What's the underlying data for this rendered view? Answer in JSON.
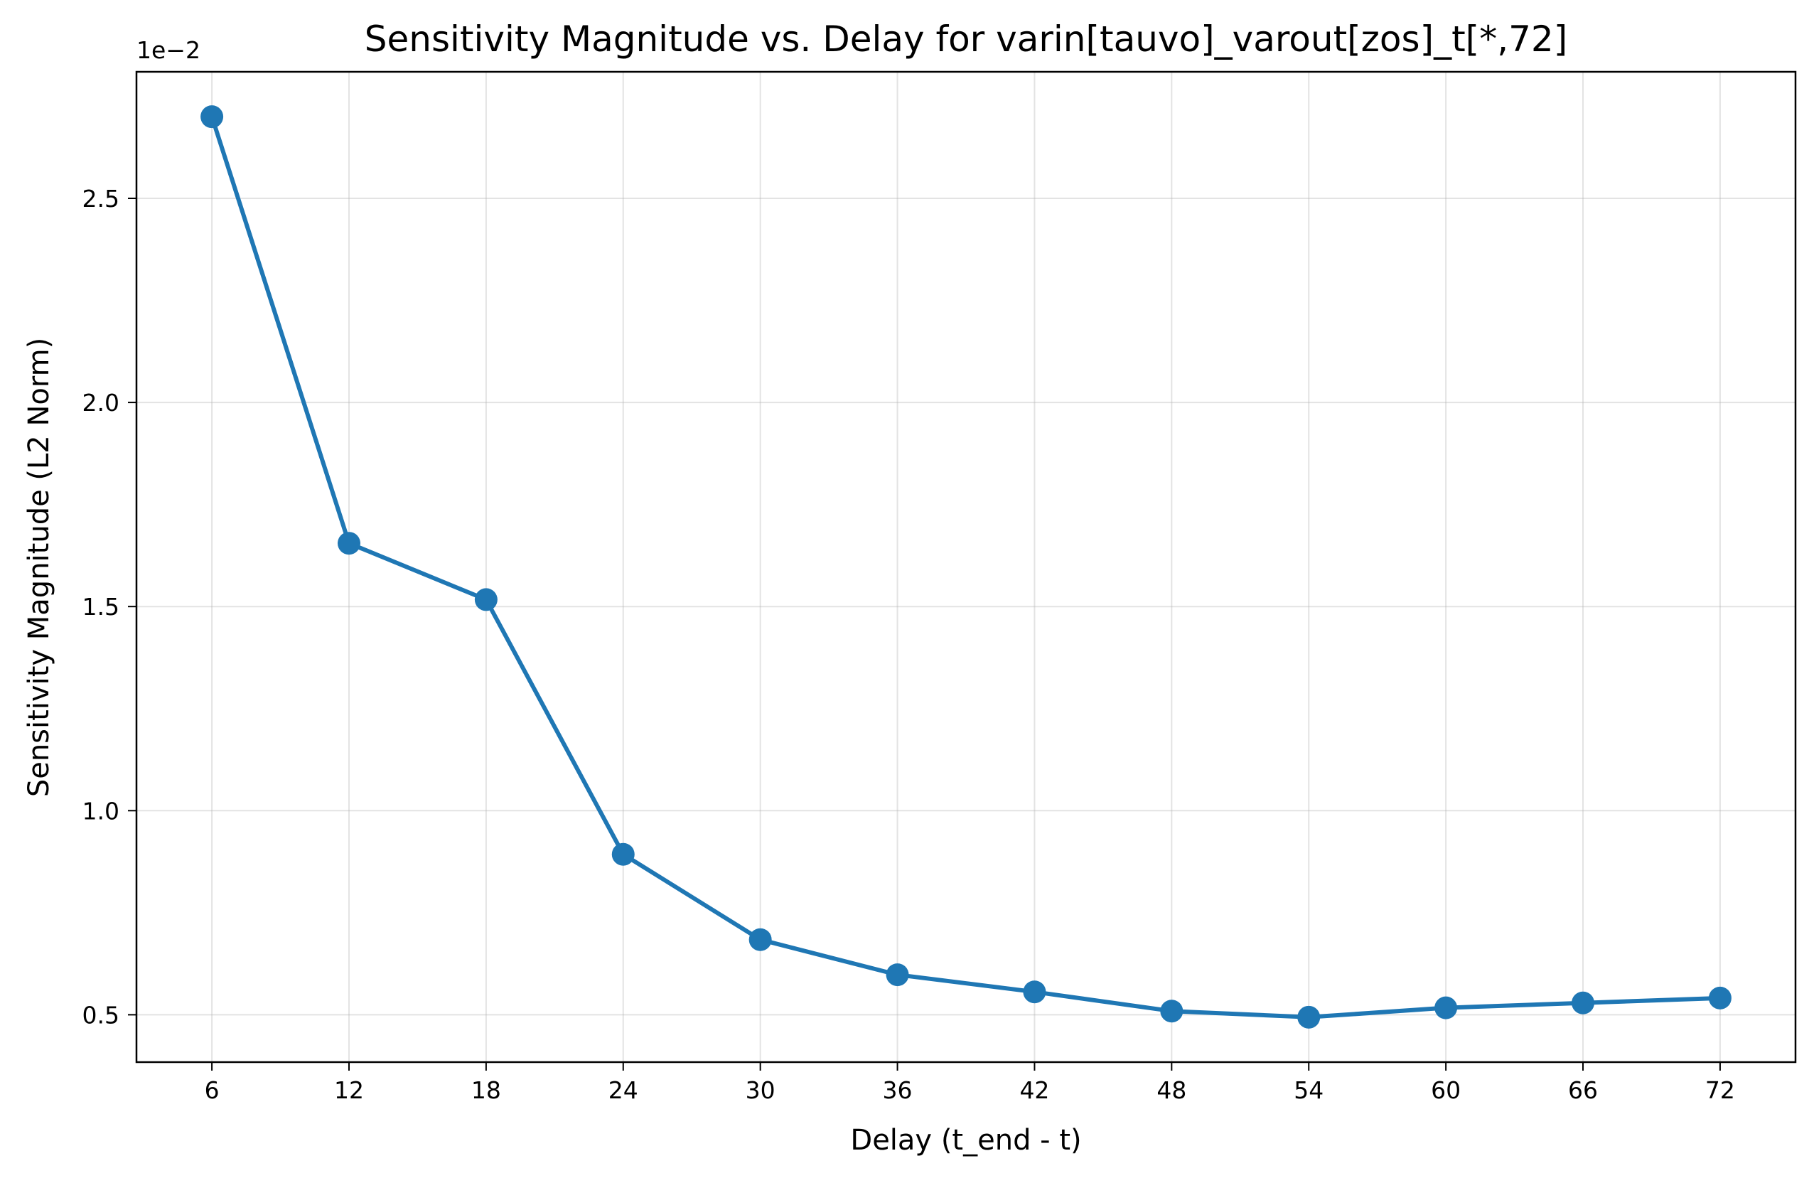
{
  "chart_data": {
    "type": "line",
    "title": "Sensitivity Magnitude vs. Delay for varin[tauvo]_varout[zos]_t[*,72]",
    "xlabel": "Delay (t_end - t)",
    "ylabel": "Sensitivity Magnitude (L2 Norm)",
    "y_offset_label": "1e−2",
    "x": [
      6,
      12,
      18,
      24,
      30,
      36,
      42,
      48,
      54,
      60,
      66,
      72
    ],
    "x_tick_labels": [
      "6",
      "12",
      "18",
      "24",
      "30",
      "36",
      "42",
      "48",
      "54",
      "60",
      "66",
      "72"
    ],
    "xlim": [
      2.7,
      75.3
    ],
    "series": [
      {
        "values": [
          0.027,
          0.01655,
          0.01517,
          0.00893,
          0.00684,
          0.00598,
          0.00556,
          0.00509,
          0.00494,
          0.00517,
          0.00529,
          0.00541
        ]
      }
    ],
    "y_ticks": [
      0.005,
      0.01,
      0.015,
      0.02,
      0.025
    ],
    "y_tick_labels": [
      "0.5",
      "1.0",
      "1.5",
      "2.0",
      "2.5"
    ],
    "ylim": [
      0.00384,
      0.0281
    ],
    "grid": true,
    "line_color": "#1f77b4",
    "marker": "circle"
  }
}
